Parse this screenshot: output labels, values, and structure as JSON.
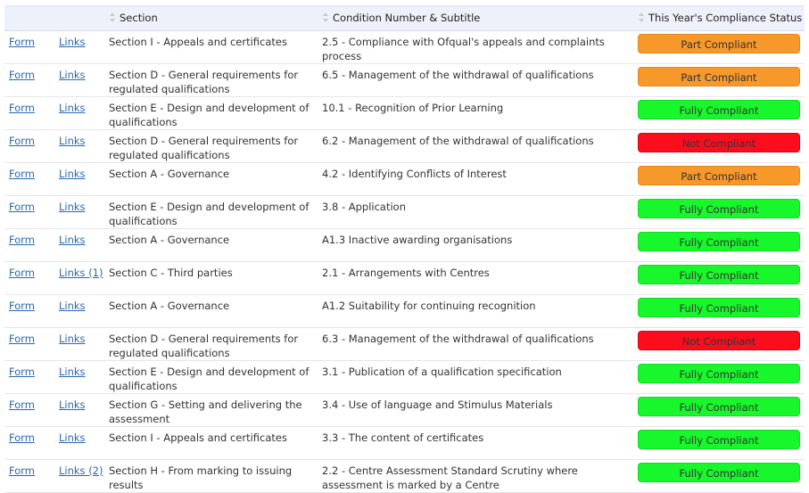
{
  "table": {
    "headers": {
      "section": "Section",
      "condition": "Condition Number & Subtitle",
      "status": "This Year's Compliance Status"
    },
    "status_colors": {
      "Part Compliant": "#f7982b",
      "Fully Compliant": "#18f72b",
      "Not Compliant": "#fc0d1e"
    },
    "rows": [
      {
        "form": "Form",
        "links": "Links",
        "section": "Section I - Appeals and certificates",
        "condition": "2.5 - Compliance with Ofqual's appeals and complaints process",
        "status": "Part Compliant"
      },
      {
        "form": "Form",
        "links": "Links",
        "section": "Section D - General requirements for regulated qualifications",
        "condition": "6.5 - Management of the withdrawal of qualifications",
        "status": "Part Compliant"
      },
      {
        "form": "Form",
        "links": "Links",
        "section": "Section E - Design and development of qualifications",
        "condition": "10.1 - Recognition of Prior Learning",
        "status": "Fully Compliant"
      },
      {
        "form": "Form",
        "links": "Links",
        "section": "Section D - General requirements for regulated qualifications",
        "condition": "6.2 - Management of the withdrawal of qualifications",
        "status": "Not Compliant"
      },
      {
        "form": "Form",
        "links": "Links",
        "section": "Section A - Governance",
        "condition": "4.2 - Identifying Conflicts of Interest",
        "status": "Part Compliant"
      },
      {
        "form": "Form",
        "links": "Links",
        "section": "Section E - Design and development of qualifications",
        "condition": "3.8 - Application",
        "status": "Fully Compliant"
      },
      {
        "form": "Form",
        "links": "Links",
        "section": "Section A - Governance",
        "condition": "A1.3 Inactive awarding organisations",
        "status": "Fully Compliant"
      },
      {
        "form": "Form",
        "links": "Links (1)",
        "section": "Section C - Third parties",
        "condition": "2.1 - Arrangements with Centres",
        "status": "Fully Compliant"
      },
      {
        "form": "Form",
        "links": "Links",
        "section": "Section A - Governance",
        "condition": "A1.2 Suitability for continuing recognition",
        "status": "Fully Compliant"
      },
      {
        "form": "Form",
        "links": "Links",
        "section": "Section D - General requirements for regulated qualifications",
        "condition": "6.3 - Management of the withdrawal of qualifications",
        "status": "Not Compliant"
      },
      {
        "form": "Form",
        "links": "Links",
        "section": "Section E - Design and development of qualifications",
        "condition": "3.1 - Publication of a qualification specification",
        "status": "Fully Compliant"
      },
      {
        "form": "Form",
        "links": "Links",
        "section": "Section G - Setting and delivering the assessment",
        "condition": "3.4 - Use of language and Stimulus Materials",
        "status": "Fully Compliant"
      },
      {
        "form": "Form",
        "links": "Links",
        "section": "Section I - Appeals and certificates",
        "condition": "3.3 - The content of certificates",
        "status": "Fully Compliant"
      },
      {
        "form": "Form",
        "links": "Links (2)",
        "section": "Section H - From marking to issuing results",
        "condition": "2.2 - Centre Assessment Standard Scrutiny where assessment is marked by a Centre",
        "status": "Fully Compliant"
      }
    ]
  }
}
